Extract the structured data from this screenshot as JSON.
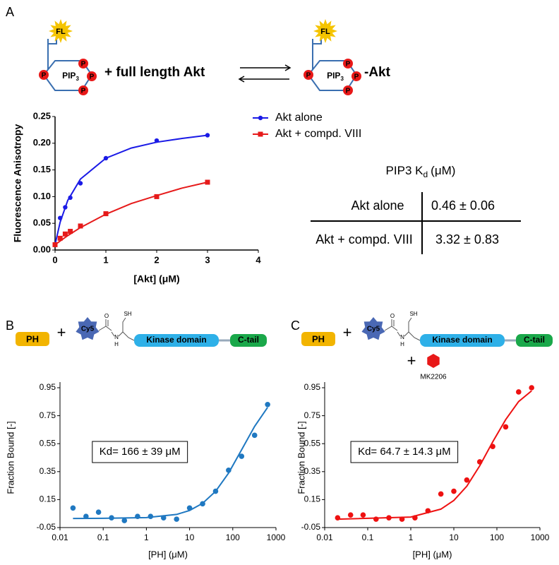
{
  "panel_labels": [
    "A",
    "B",
    "C"
  ],
  "scheme_a": {
    "fl": "FL",
    "pip": "PIP",
    "pip_sub": "3",
    "p": "P",
    "binding_partner": "+ full length Akt",
    "complex_suffix": "-Akt"
  },
  "scheme_bc": {
    "ph": "PH",
    "plus": "+",
    "cy5": "Cy5",
    "sh": "SH",
    "o": "O",
    "n": "N",
    "h": "H",
    "kinase": "Kinase domain",
    "ctail": "C-tail",
    "inhibitor": "MK2206"
  },
  "table": {
    "title": "PIP3 K",
    "title_sub": "d",
    "title_unit": "(μM)",
    "rows": [
      [
        "Akt alone",
        "0.46 ± 0.06"
      ],
      [
        "Akt + compd. VIII",
        "3.32 ± 0.83"
      ]
    ]
  },
  "chart_data": [
    {
      "type": "scatter",
      "xlabel": "[Akt] (μM)",
      "ylabel": "Fluorescence Anisotropy",
      "xlim": [
        0,
        4
      ],
      "xticks": [
        0,
        1,
        2,
        3,
        4
      ],
      "ylim": [
        0,
        0.25
      ],
      "yticks": [
        {
          "value": 0,
          "label": "0.00"
        },
        0.05,
        {
          "value": 0.1,
          "label": "0.10"
        },
        0.15,
        {
          "value": 0.2,
          "label": "0.20"
        },
        0.25
      ],
      "series": [
        {
          "name": "Akt alone",
          "color": "#1a1ae6",
          "marker": "circle",
          "x": [
            0,
            0.1,
            0.2,
            0.3,
            0.5,
            1,
            2,
            3
          ],
          "values": [
            0.01,
            0.06,
            0.08,
            0.098,
            0.125,
            0.172,
            0.205,
            0.215
          ],
          "fit": {
            "x": [
              0,
              0.1,
              0.25,
              0.5,
              1,
              1.5,
              2,
              2.5,
              3
            ],
            "values": [
              0.01,
              0.052,
              0.093,
              0.133,
              0.172,
              0.191,
              0.202,
              0.209,
              0.215
            ]
          }
        },
        {
          "name": "Akt + compd. VIII",
          "color": "#e61a1a",
          "marker": "square",
          "x": [
            0,
            0.1,
            0.2,
            0.3,
            0.5,
            1,
            2,
            3
          ],
          "values": [
            0.01,
            0.022,
            0.03,
            0.035,
            0.045,
            0.068,
            0.1,
            0.127
          ],
          "fit": {
            "x": [
              0,
              0.25,
              0.5,
              1,
              1.5,
              2,
              2.5,
              3
            ],
            "values": [
              0.01,
              0.027,
              0.042,
              0.067,
              0.087,
              0.102,
              0.116,
              0.127
            ]
          }
        }
      ]
    },
    {
      "type": "scatter",
      "xscale": "log",
      "xlabel": "[PH] (μM)",
      "ylabel": "Fraction Bound [-]",
      "annotation": "Kd= 166 ± 39 μM",
      "xlim": [
        0.01,
        1000
      ],
      "xticks": [
        0.01,
        0.1,
        1,
        10,
        100,
        1000
      ],
      "ylim": [
        -0.05,
        0.95
      ],
      "yticks": [
        -0.05,
        0.15,
        0.35,
        0.55,
        0.75,
        0.95
      ],
      "series": [
        {
          "color": "#1f78c1",
          "marker": "circle",
          "x": [
            0.02,
            0.04,
            0.078,
            0.156,
            0.31,
            0.625,
            1.25,
            2.5,
            5,
            10,
            20,
            40,
            80,
            160,
            320,
            640
          ],
          "values": [
            0.09,
            0.03,
            0.06,
            0.02,
            0.0,
            0.03,
            0.03,
            0.02,
            0.01,
            0.09,
            0.12,
            0.21,
            0.36,
            0.46,
            0.61,
            0.83
          ],
          "fit": {
            "x": [
              0.02,
              0.1,
              1,
              5,
              10,
              20,
              40,
              80,
              160,
              320,
              640
            ],
            "values": [
              0.015,
              0.016,
              0.021,
              0.044,
              0.072,
              0.123,
              0.209,
              0.34,
              0.506,
              0.673,
              0.809
            ]
          }
        }
      ]
    },
    {
      "type": "scatter",
      "xscale": "log",
      "xlabel": "[PH] (μM)",
      "ylabel": "Fraction Bound [-]",
      "annotation": "Kd= 64.7 ± 14.3 μM",
      "xlim": [
        0.01,
        1000
      ],
      "xticks": [
        0.01,
        0.1,
        1,
        10,
        100,
        1000
      ],
      "ylim": [
        -0.05,
        0.95
      ],
      "yticks": [
        -0.05,
        0.15,
        0.35,
        0.55,
        0.75,
        0.95
      ],
      "series": [
        {
          "color": "#ee1111",
          "marker": "circle",
          "x": [
            0.02,
            0.04,
            0.078,
            0.156,
            0.31,
            0.625,
            1.25,
            2.5,
            5,
            10,
            20,
            40,
            80,
            160,
            320,
            640
          ],
          "values": [
            0.02,
            0.04,
            0.04,
            0.01,
            0.02,
            0.01,
            0.02,
            0.07,
            0.19,
            0.21,
            0.29,
            0.42,
            0.53,
            0.67,
            0.92,
            0.95
          ],
          "fit": {
            "x": [
              0.02,
              1,
              5,
              10,
              20,
              40,
              80,
              160,
              320,
              640
            ],
            "values": [
              0.01,
              0.025,
              0.082,
              0.144,
              0.246,
              0.392,
              0.563,
              0.722,
              0.851,
              0.928
            ]
          }
        }
      ]
    }
  ]
}
